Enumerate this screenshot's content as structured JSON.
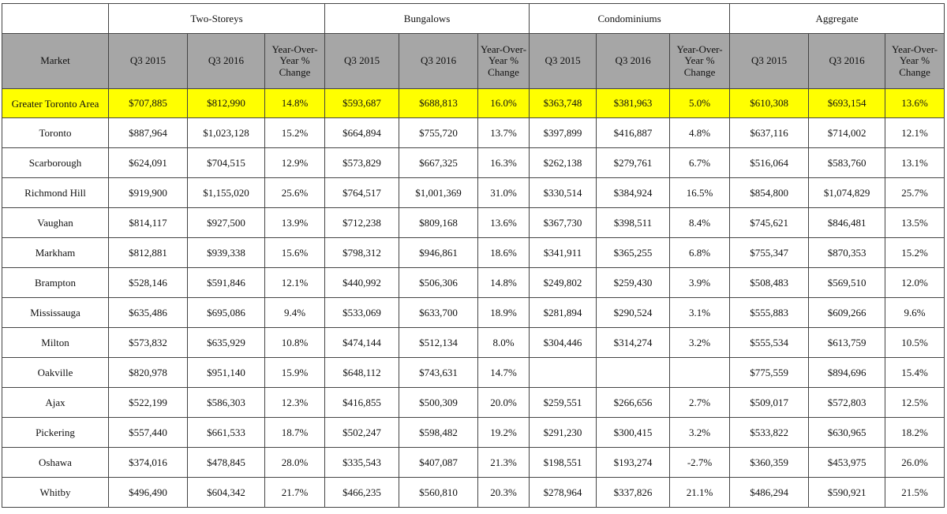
{
  "groups": [
    "Two-Storeys",
    "Bungalows",
    "Condominiums",
    "Aggregate"
  ],
  "header": {
    "market": "Market",
    "q3_2015": "Q3 2015",
    "q3_2016": "Q3 2016",
    "yoy": "Year-Over-Year % Change"
  },
  "rows": [
    {
      "market": "Greater Toronto Area",
      "cells": [
        "$707,885",
        "$812,990",
        "14.8%",
        "$593,687",
        "$688,813",
        "16.0%",
        "$363,748",
        "$381,963",
        "5.0%",
        "$610,308",
        "$693,154",
        "13.6%"
      ]
    },
    {
      "market": "Toronto",
      "cells": [
        "$887,964",
        "$1,023,128",
        "15.2%",
        "$664,894",
        "$755,720",
        "13.7%",
        "$397,899",
        "$416,887",
        "4.8%",
        "$637,116",
        "$714,002",
        "12.1%"
      ]
    },
    {
      "market": "Scarborough",
      "cells": [
        "$624,091",
        "$704,515",
        "12.9%",
        "$573,829",
        "$667,325",
        "16.3%",
        "$262,138",
        "$279,761",
        "6.7%",
        "$516,064",
        "$583,760",
        "13.1%"
      ]
    },
    {
      "market": "Richmond Hill",
      "cells": [
        "$919,900",
        "$1,155,020",
        "25.6%",
        "$764,517",
        "$1,001,369",
        "31.0%",
        "$330,514",
        "$384,924",
        "16.5%",
        "$854,800",
        "$1,074,829",
        "25.7%"
      ]
    },
    {
      "market": "Vaughan",
      "cells": [
        "$814,117",
        "$927,500",
        "13.9%",
        "$712,238",
        "$809,168",
        "13.6%",
        "$367,730",
        "$398,511",
        "8.4%",
        "$745,621",
        "$846,481",
        "13.5%"
      ]
    },
    {
      "market": "Markham",
      "cells": [
        "$812,881",
        "$939,338",
        "15.6%",
        "$798,312",
        "$946,861",
        "18.6%",
        "$341,911",
        "$365,255",
        "6.8%",
        "$755,347",
        "$870,353",
        "15.2%"
      ]
    },
    {
      "market": "Brampton",
      "cells": [
        "$528,146",
        "$591,846",
        "12.1%",
        "$440,992",
        "$506,306",
        "14.8%",
        "$249,802",
        "$259,430",
        "3.9%",
        "$508,483",
        "$569,510",
        "12.0%"
      ]
    },
    {
      "market": "Mississauga",
      "cells": [
        "$635,486",
        "$695,086",
        "9.4%",
        "$533,069",
        "$633,700",
        "18.9%",
        "$281,894",
        "$290,524",
        "3.1%",
        "$555,883",
        "$609,266",
        "9.6%"
      ]
    },
    {
      "market": "Milton",
      "cells": [
        "$573,832",
        "$635,929",
        "10.8%",
        "$474,144",
        "$512,134",
        "8.0%",
        "$304,446",
        "$314,274",
        "3.2%",
        "$555,534",
        "$613,759",
        "10.5%"
      ]
    },
    {
      "market": "Oakville",
      "cells": [
        "$820,978",
        "$951,140",
        "15.9%",
        "$648,112",
        "$743,631",
        "14.7%",
        "",
        "",
        "",
        "$775,559",
        "$894,696",
        "15.4%"
      ]
    },
    {
      "market": "Ajax",
      "cells": [
        "$522,199",
        "$586,303",
        "12.3%",
        "$416,855",
        "$500,309",
        "20.0%",
        "$259,551",
        "$266,656",
        "2.7%",
        "$509,017",
        "$572,803",
        "12.5%"
      ]
    },
    {
      "market": "Pickering",
      "cells": [
        "$557,440",
        "$661,533",
        "18.7%",
        "$502,247",
        "$598,482",
        "19.2%",
        "$291,230",
        "$300,415",
        "3.2%",
        "$533,822",
        "$630,965",
        "18.2%"
      ]
    },
    {
      "market": "Oshawa",
      "cells": [
        "$374,016",
        "$478,845",
        "28.0%",
        "$335,543",
        "$407,087",
        "21.3%",
        "$198,551",
        "$193,274",
        "-2.7%",
        "$360,359",
        "$453,975",
        "26.0%"
      ]
    },
    {
      "market": "Whitby",
      "cells": [
        "$496,490",
        "$604,342",
        "21.7%",
        "$466,235",
        "$560,810",
        "20.3%",
        "$278,964",
        "$337,826",
        "21.1%",
        "$486,294",
        "$590,921",
        "21.5%"
      ]
    }
  ],
  "highlight_color": "#ffff00",
  "header_bg_color": "#a6a6a6"
}
